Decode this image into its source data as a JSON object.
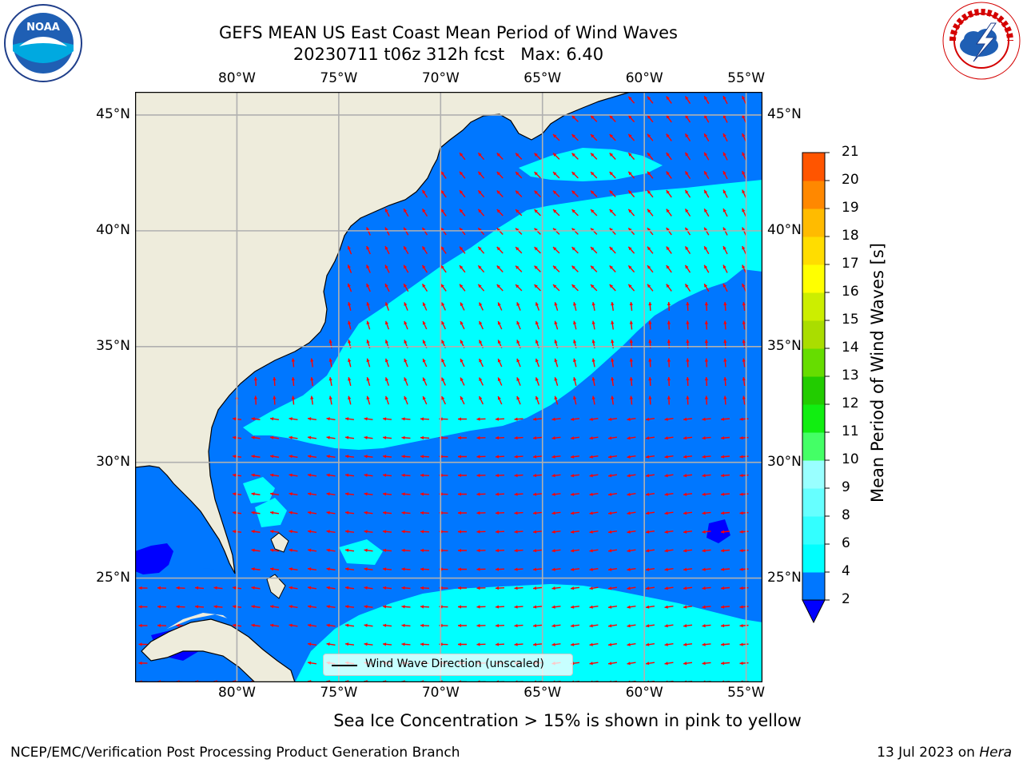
{
  "title": {
    "line1": "GEFS MEAN US East Coast Mean Period of Wind Waves",
    "line2": "20230711 t06z 312h fcst   Max: 6.40"
  },
  "map": {
    "region": "US East Coast",
    "lon_range": [
      -85,
      -54.2
    ],
    "lat_range": [
      20.5,
      46
    ],
    "x_ticks": [
      "80°W",
      "75°W",
      "70°W",
      "65°W",
      "60°W",
      "55°W"
    ],
    "y_ticks": [
      "25°N",
      "30°N",
      "35°N",
      "40°N",
      "45°N"
    ],
    "colors": {
      "land": "#eeecdc",
      "coastline": "#000000",
      "grid": "#b0b0b0",
      "arrow": "#ff0000"
    },
    "legend": {
      "text": "Wind Wave Direction (unscaled)"
    },
    "logos": [
      "noaa-logo",
      "nws-logo"
    ]
  },
  "colorbar": {
    "label": "Mean Period of Wind Waves [s]",
    "ticks": [
      "2",
      "4",
      "6",
      "8",
      "9",
      "10",
      "11",
      "12",
      "13",
      "14",
      "15",
      "16",
      "17",
      "18",
      "19",
      "20",
      "21"
    ],
    "levels": [
      2,
      4,
      6,
      8,
      9,
      10,
      11,
      12,
      13,
      14,
      15,
      16,
      17,
      18,
      19,
      20,
      21
    ],
    "colors": [
      "#0077ff",
      "#00ffff",
      "#33ffff",
      "#66ffff",
      "#99ffff",
      "#44ff66",
      "#11ee11",
      "#22cc00",
      "#66dd00",
      "#aadd00",
      "#ccee00",
      "#ffff00",
      "#ffdd00",
      "#ffbb00",
      "#ff8800",
      "#ff5500",
      "#ff2200",
      "#ff0000"
    ],
    "under_color": "#0000ff"
  },
  "caption": "Sea Ice Concentration > 15% is shown in pink to yellow",
  "footer": {
    "left": "NCEP/EMC/Verification Post Processing Product Generation Branch",
    "right_date": "13 Jul 2023 on ",
    "right_host": "Hera"
  }
}
